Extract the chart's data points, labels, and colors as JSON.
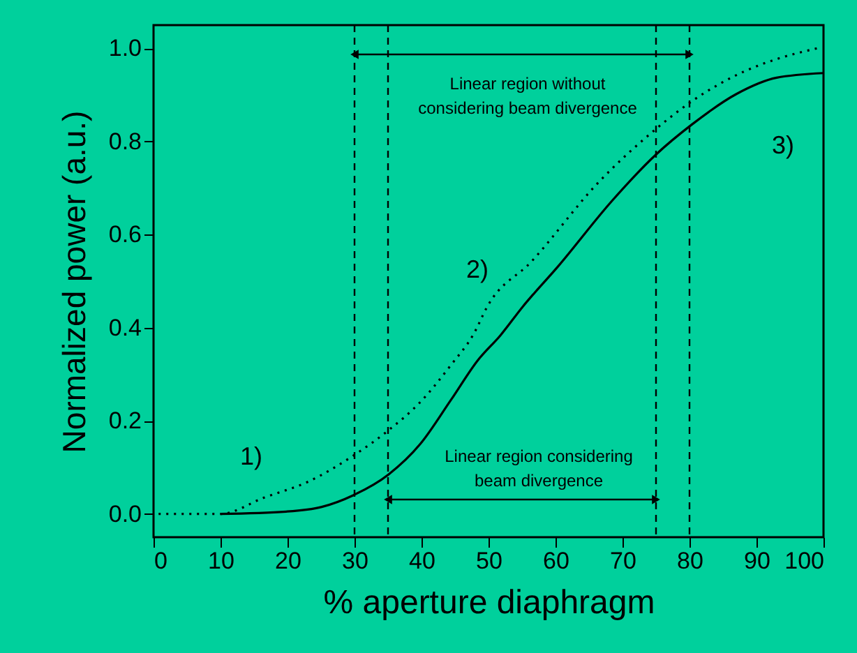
{
  "chart_data": {
    "type": "line",
    "xlabel": "% aperture diaphragm",
    "ylabel": "Normalized power (a.u.)",
    "series": [
      {
        "color": "#000000",
        "line_style": "solid",
        "x": [
          10,
          19.8,
          25.1,
          29.8,
          35.1,
          39.8,
          44.4,
          48.4,
          51.8,
          55.1,
          60.4,
          68.4,
          75,
          80.4,
          87,
          93,
          100
        ],
        "values": [
          0,
          0.005,
          0.015,
          0.04,
          0.085,
          0.15,
          0.245,
          0.33,
          0.384,
          0.445,
          0.532,
          0.672,
          0.772,
          0.837,
          0.902,
          0.937,
          0.947
        ]
      },
      {
        "color": "#000000",
        "line_style": "dotted",
        "x": [
          0,
          10,
          16.5,
          23.2,
          29.8,
          35.1,
          39.8,
          44.4,
          47.8,
          49.8,
          56.4,
          66.4,
          75,
          80.4,
          88.4,
          93,
          99
        ],
        "values": [
          0,
          0,
          0.035,
          0.07,
          0.125,
          0.18,
          0.24,
          0.32,
          0.387,
          0.445,
          0.542,
          0.712,
          0.827,
          0.887,
          0.952,
          0.977,
          1.0
        ]
      }
    ],
    "marker": "none",
    "grid": false,
    "xlim": [
      0,
      100
    ],
    "xticks": [
      0,
      10,
      20,
      30,
      40,
      50,
      60,
      70,
      80,
      90,
      100
    ],
    "ylim": [
      -0.05,
      1.05
    ],
    "yticks": [
      {
        "value": 0,
        "label": "0.0"
      },
      {
        "value": 0.2,
        "label": "0.2"
      },
      {
        "value": 0.4,
        "label": "0.4"
      },
      {
        "value": 0.6,
        "label": "0.6"
      },
      {
        "value": 0.8,
        "label": "0.8"
      },
      {
        "value": 1,
        "label": "1.0"
      }
    ],
    "ref_lines": [
      {
        "axis": "x",
        "value": 30,
        "line_style": "dashed",
        "color": "#000000"
      },
      {
        "axis": "x",
        "value": 80,
        "line_style": "dashed",
        "color": "#000000"
      },
      {
        "axis": "x",
        "value": 35,
        "line_style": "dashed",
        "color": "#000000"
      },
      {
        "axis": "x",
        "value": 75,
        "line_style": "dashed",
        "color": "#000000"
      }
    ],
    "annotations": [
      "Linear region without\nconsidering beam divergence",
      "Linear region considering\nbeam divergence",
      "1)",
      "2)",
      "3)"
    ]
  }
}
